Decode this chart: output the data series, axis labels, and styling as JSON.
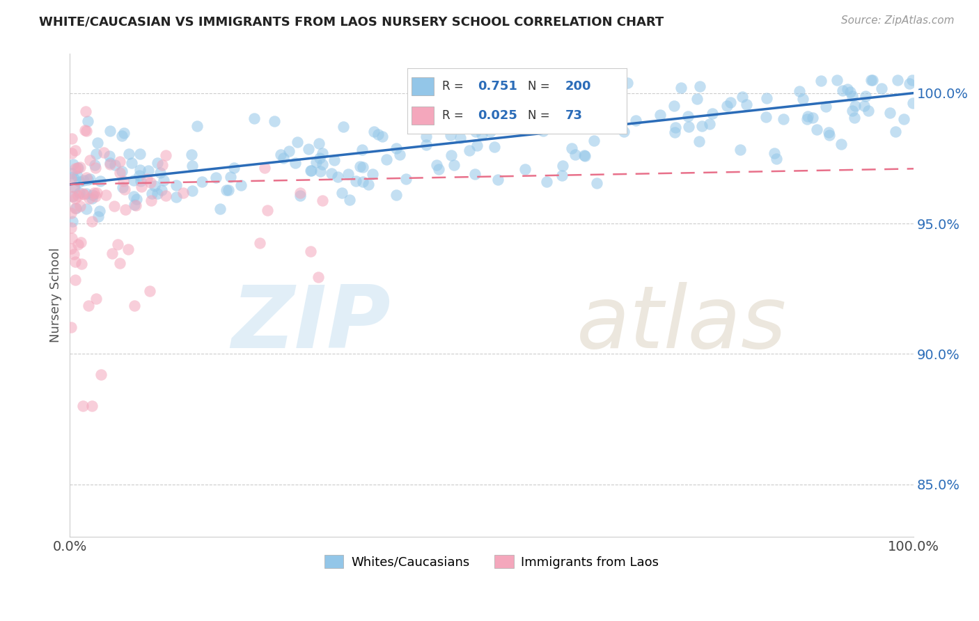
{
  "title": "WHITE/CAUCASIAN VS IMMIGRANTS FROM LAOS NURSERY SCHOOL CORRELATION CHART",
  "source_text": "Source: ZipAtlas.com",
  "ylabel": "Nursery School",
  "watermark_zip": "ZIP",
  "watermark_atlas": "atlas",
  "blue_R": 0.751,
  "blue_N": 200,
  "pink_R": 0.025,
  "pink_N": 73,
  "blue_label": "Whites/Caucasians",
  "pink_label": "Immigrants from Laos",
  "xmin": 0.0,
  "xmax": 100.0,
  "ymin": 83.0,
  "ymax": 101.5,
  "yticks": [
    85.0,
    90.0,
    95.0,
    100.0
  ],
  "xtick_vals": [
    0,
    100
  ],
  "xtick_labels": [
    "0.0%",
    "100.0%"
  ],
  "blue_color": "#93c6e8",
  "pink_color": "#f4a7bc",
  "blue_line_color": "#2b6cb8",
  "pink_line_color": "#e8708a",
  "title_color": "#222222",
  "source_color": "#999999",
  "legend_text_color": "#333333",
  "legend_value_color": "#2b6cb8",
  "grid_color": "#cccccc",
  "background_color": "#ffffff",
  "blue_scatter_seed": 77,
  "pink_scatter_seed": 88
}
